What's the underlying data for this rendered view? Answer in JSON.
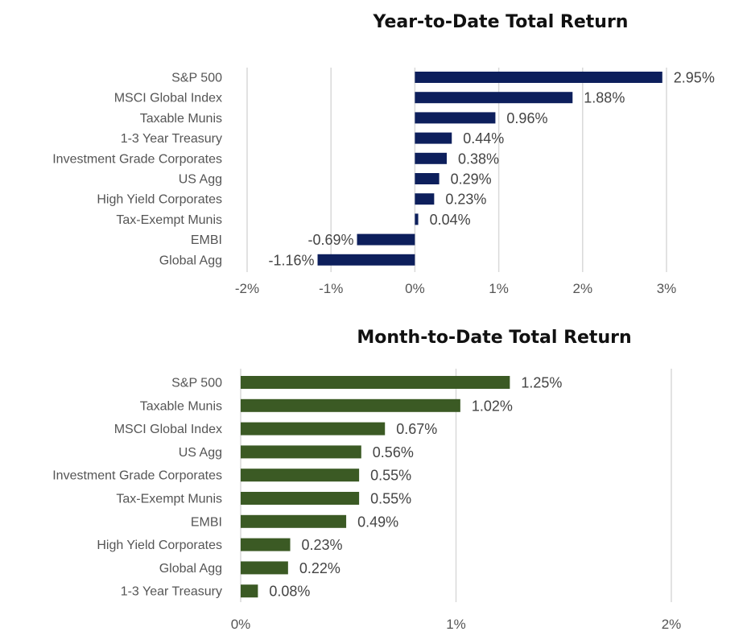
{
  "chart_data": [
    {
      "type": "bar",
      "orientation": "horizontal",
      "title": "Year-to-Date Total Return",
      "xlabel": "",
      "ylabel": "",
      "categories": [
        "S&P 500",
        "MSCI Global Index",
        "Taxable Munis",
        "1-3 Year Treasury",
        "Investment Grade Corporates",
        "US Agg",
        "High Yield Corporates",
        "Tax-Exempt Munis",
        "EMBI",
        "Global Agg"
      ],
      "values": [
        2.95,
        1.88,
        0.96,
        0.44,
        0.38,
        0.29,
        0.23,
        0.04,
        -0.69,
        -1.16
      ],
      "value_labels": [
        "2.95%",
        "1.88%",
        "0.96%",
        "0.44%",
        "0.38%",
        "0.29%",
        "0.23%",
        "0.04%",
        "-0.69%",
        "-1.16%"
      ],
      "xlim": [
        -2,
        3
      ],
      "ticks": [
        -2,
        -1,
        0,
        1,
        2,
        3
      ],
      "tick_labels": [
        "-2%",
        "-1%",
        "0%",
        "1%",
        "2%",
        "3%"
      ],
      "grid": true,
      "legend": "none",
      "bar_color": "#0d1f5c"
    },
    {
      "type": "bar",
      "orientation": "horizontal",
      "title": "Month-to-Date Total Return",
      "xlabel": "",
      "ylabel": "",
      "categories": [
        "S&P 500",
        "Taxable Munis",
        "MSCI Global Index",
        "US Agg",
        "Investment Grade Corporates",
        "Tax-Exempt Munis",
        "EMBI",
        "High Yield Corporates",
        "Global Agg",
        "1-3 Year Treasury"
      ],
      "values": [
        1.25,
        1.02,
        0.67,
        0.56,
        0.55,
        0.55,
        0.49,
        0.23,
        0.22,
        0.08
      ],
      "value_labels": [
        "1.25%",
        "1.02%",
        "0.67%",
        "0.56%",
        "0.55%",
        "0.55%",
        "0.49%",
        "0.23%",
        "0.22%",
        "0.08%"
      ],
      "xlim": [
        0,
        2
      ],
      "ticks": [
        0,
        1,
        2
      ],
      "tick_labels": [
        "0%",
        "1%",
        "2%"
      ],
      "grid": true,
      "legend": "none",
      "bar_color": "#3b5a24"
    }
  ]
}
